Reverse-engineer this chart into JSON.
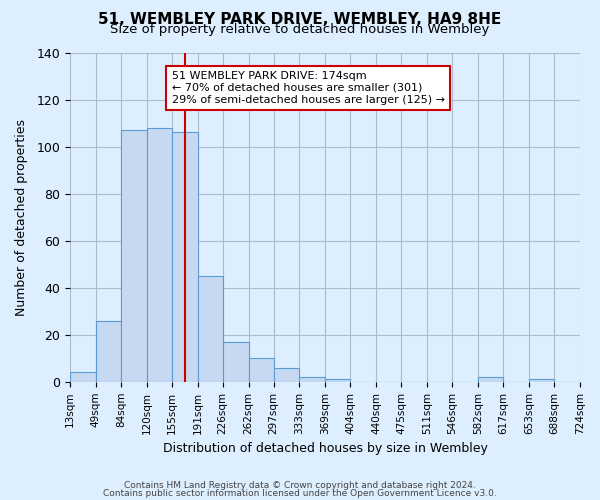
{
  "title": "51, WEMBLEY PARK DRIVE, WEMBLEY, HA9 8HE",
  "subtitle": "Size of property relative to detached houses in Wembley",
  "xlabel": "Distribution of detached houses by size in Wembley",
  "ylabel": "Number of detached properties",
  "bin_edges": [
    13,
    49,
    84,
    120,
    155,
    191,
    226,
    262,
    297,
    333,
    369,
    404,
    440,
    475,
    511,
    546,
    582,
    617,
    653,
    688,
    724
  ],
  "bar_heights": [
    4,
    26,
    107,
    108,
    106,
    45,
    17,
    10,
    6,
    2,
    1,
    0,
    0,
    0,
    0,
    0,
    2,
    0,
    1,
    0
  ],
  "bar_color": "#c6d9f0",
  "bar_edge_color": "#5b9bd5",
  "property_line_x": 174,
  "property_line_color": "#cc0000",
  "ylim": [
    0,
    140
  ],
  "yticks": [
    0,
    20,
    40,
    60,
    80,
    100,
    120,
    140
  ],
  "annotation_text": "51 WEMBLEY PARK DRIVE: 174sqm\n← 70% of detached houses are smaller (301)\n29% of semi-detached houses are larger (125) →",
  "annotation_box_color": "#ffffff",
  "annotation_box_edge_color": "#cc0000",
  "footer_line1": "Contains HM Land Registry data © Crown copyright and database right 2024.",
  "footer_line2": "Contains public sector information licensed under the Open Government Licence v3.0.",
  "background_color": "#ddeeff",
  "plot_bg_color": "#ddeeff",
  "tick_labels": [
    "13sqm",
    "49sqm",
    "84sqm",
    "120sqm",
    "155sqm",
    "191sqm",
    "226sqm",
    "262sqm",
    "297sqm",
    "333sqm",
    "369sqm",
    "404sqm",
    "440sqm",
    "475sqm",
    "511sqm",
    "546sqm",
    "582sqm",
    "617sqm",
    "653sqm",
    "688sqm",
    "724sqm"
  ]
}
